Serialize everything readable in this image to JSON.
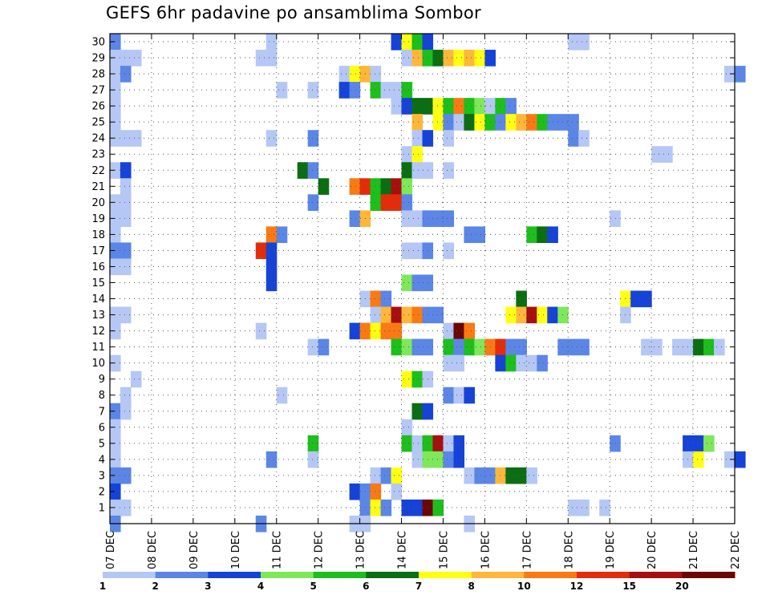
{
  "title": "GEFS 6hr padavine po ansamblima Sombor",
  "chart_data": {
    "type": "heatmap",
    "title": "GEFS 6hr padavine po ansamblima Sombor",
    "xlabel": "",
    "ylabel": "",
    "grid": true,
    "x_tick_labels": [
      "07 DEC",
      "08 DEC",
      "09 DEC",
      "10 DEC",
      "11 DEC",
      "12 DEC",
      "13 DEC",
      "14 DEC",
      "15 DEC",
      "16 DEC",
      "17 DEC",
      "18 DEC",
      "19 DEC",
      "20 DEC",
      "21 DEC",
      "22 DEC"
    ],
    "y_tick_labels": [
      "1",
      "2",
      "3",
      "4",
      "5",
      "6",
      "7",
      "8",
      "9",
      "10",
      "11",
      "12",
      "13",
      "14",
      "15",
      "16",
      "17",
      "18",
      "19",
      "20",
      "21",
      "22",
      "23",
      "24",
      "25",
      "26",
      "27",
      "28",
      "29",
      "30"
    ],
    "x_range": [
      "07 DEC",
      "22 DEC"
    ],
    "y_range": [
      0,
      30
    ],
    "x_step": "6hr",
    "colorbar": {
      "labels": [
        "1",
        "2",
        "3",
        "4",
        "5",
        "6",
        "7",
        "8",
        "10",
        "12",
        "15",
        "20"
      ],
      "colors": [
        "#b5c7f5",
        "#5b86e6",
        "#1543d8",
        "#7ee85a",
        "#1cbf1c",
        "#0b6e12",
        "#ffff14",
        "#ffb73a",
        "#f97a14",
        "#e32d0a",
        "#a70f0f",
        "#6b0606"
      ]
    },
    "cell_format": "[member, day_index_from_07DEC, six_hour_step_0_to_3, precip_class_0_to_11]",
    "cells": [
      [
        30,
        0,
        0,
        1
      ],
      [
        29,
        0,
        0,
        0
      ],
      [
        29,
        0,
        1,
        0
      ],
      [
        29,
        0,
        2,
        0
      ],
      [
        28,
        0,
        0,
        0
      ],
      [
        28,
        0,
        1,
        1
      ],
      [
        27,
        0,
        0,
        0
      ],
      [
        26,
        0,
        0,
        0
      ],
      [
        25,
        0,
        0,
        0
      ],
      [
        24,
        0,
        0,
        0
      ],
      [
        24,
        0,
        1,
        0
      ],
      [
        24,
        0,
        2,
        0
      ],
      [
        22,
        0,
        0,
        0
      ],
      [
        22,
        0,
        1,
        2
      ],
      [
        21,
        0,
        1,
        0
      ],
      [
        20,
        0,
        0,
        0
      ],
      [
        20,
        0,
        1,
        0
      ],
      [
        19,
        0,
        0,
        0
      ],
      [
        19,
        0,
        1,
        0
      ],
      [
        18,
        0,
        0,
        0
      ],
      [
        17,
        0,
        0,
        1
      ],
      [
        17,
        0,
        1,
        1
      ],
      [
        16,
        0,
        0,
        0
      ],
      [
        16,
        0,
        1,
        0
      ],
      [
        13,
        0,
        0,
        0
      ],
      [
        13,
        0,
        1,
        0
      ],
      [
        12,
        0,
        0,
        0
      ],
      [
        10,
        0,
        0,
        0
      ],
      [
        9,
        0,
        2,
        0
      ],
      [
        8,
        0,
        1,
        0
      ],
      [
        7,
        0,
        0,
        1
      ],
      [
        7,
        0,
        1,
        0
      ],
      [
        6,
        0,
        0,
        0
      ],
      [
        5,
        0,
        0,
        0
      ],
      [
        4,
        0,
        0,
        0
      ],
      [
        3,
        0,
        0,
        1
      ],
      [
        3,
        0,
        1,
        1
      ],
      [
        2,
        0,
        0,
        2
      ],
      [
        1,
        0,
        0,
        0
      ],
      [
        1,
        0,
        1,
        0
      ],
      [
        0,
        0,
        0,
        1
      ],
      [
        30,
        3,
        3,
        0
      ],
      [
        29,
        3,
        2,
        0
      ],
      [
        29,
        3,
        3,
        0
      ],
      [
        27,
        4,
        0,
        0
      ],
      [
        24,
        3,
        3,
        0
      ],
      [
        18,
        3,
        3,
        8
      ],
      [
        18,
        4,
        0,
        1
      ],
      [
        17,
        3,
        2,
        9
      ],
      [
        17,
        3,
        3,
        2
      ],
      [
        16,
        3,
        3,
        2
      ],
      [
        15,
        3,
        3,
        2
      ],
      [
        12,
        3,
        2,
        0
      ],
      [
        8,
        4,
        0,
        0
      ],
      [
        4,
        3,
        3,
        1
      ],
      [
        0,
        3,
        2,
        1
      ],
      [
        27,
        4,
        3,
        0
      ],
      [
        24,
        4,
        3,
        1
      ],
      [
        22,
        4,
        2,
        5
      ],
      [
        22,
        4,
        3,
        1
      ],
      [
        21,
        5,
        0,
        5
      ],
      [
        20,
        4,
        3,
        1
      ],
      [
        11,
        4,
        3,
        0
      ],
      [
        11,
        5,
        0,
        1
      ],
      [
        5,
        4,
        3,
        4
      ],
      [
        4,
        4,
        3,
        0
      ],
      [
        30,
        6,
        3,
        2
      ],
      [
        30,
        7,
        0,
        6
      ],
      [
        30,
        7,
        1,
        4
      ],
      [
        30,
        7,
        2,
        2
      ],
      [
        29,
        7,
        0,
        0
      ],
      [
        29,
        7,
        1,
        7
      ],
      [
        29,
        7,
        2,
        4
      ],
      [
        29,
        7,
        3,
        5
      ],
      [
        29,
        8,
        0,
        7
      ],
      [
        29,
        8,
        1,
        6
      ],
      [
        29,
        8,
        2,
        7
      ],
      [
        29,
        8,
        3,
        6
      ],
      [
        29,
        9,
        0,
        2
      ],
      [
        28,
        5,
        2,
        0
      ],
      [
        28,
        5,
        3,
        6
      ],
      [
        28,
        6,
        0,
        7
      ],
      [
        28,
        6,
        1,
        0
      ],
      [
        27,
        5,
        2,
        2
      ],
      [
        27,
        5,
        3,
        1
      ],
      [
        27,
        6,
        1,
        4
      ],
      [
        27,
        6,
        2,
        0
      ],
      [
        27,
        6,
        3,
        0
      ],
      [
        27,
        7,
        0,
        4
      ],
      [
        26,
        6,
        3,
        0
      ],
      [
        26,
        7,
        0,
        2
      ],
      [
        26,
        7,
        1,
        5
      ],
      [
        26,
        7,
        2,
        5
      ],
      [
        26,
        7,
        3,
        6
      ],
      [
        26,
        8,
        0,
        4
      ],
      [
        26,
        8,
        1,
        8
      ],
      [
        26,
        8,
        2,
        4
      ],
      [
        26,
        8,
        3,
        3
      ],
      [
        26,
        9,
        0,
        0
      ],
      [
        26,
        9,
        1,
        4
      ],
      [
        26,
        9,
        2,
        1
      ],
      [
        25,
        7,
        1,
        7
      ],
      [
        25,
        7,
        3,
        6
      ],
      [
        25,
        8,
        0,
        1
      ],
      [
        25,
        8,
        1,
        0
      ],
      [
        25,
        8,
        2,
        5
      ],
      [
        25,
        8,
        3,
        6
      ],
      [
        25,
        9,
        0,
        4
      ],
      [
        25,
        9,
        1,
        1
      ],
      [
        25,
        9,
        2,
        6
      ],
      [
        25,
        9,
        3,
        7
      ],
      [
        25,
        10,
        0,
        8
      ],
      [
        25,
        10,
        1,
        4
      ],
      [
        25,
        10,
        2,
        1
      ],
      [
        25,
        10,
        3,
        1
      ],
      [
        25,
        11,
        0,
        1
      ],
      [
        24,
        7,
        1,
        0
      ],
      [
        24,
        7,
        2,
        2
      ],
      [
        24,
        8,
        0,
        0
      ],
      [
        24,
        11,
        0,
        1
      ],
      [
        24,
        11,
        1,
        0
      ],
      [
        23,
        7,
        0,
        0
      ],
      [
        23,
        7,
        1,
        6
      ],
      [
        22,
        7,
        0,
        5
      ],
      [
        22,
        7,
        1,
        0
      ],
      [
        22,
        7,
        2,
        0
      ],
      [
        22,
        8,
        0,
        0
      ],
      [
        21,
        5,
        3,
        8
      ],
      [
        21,
        6,
        0,
        9
      ],
      [
        21,
        6,
        1,
        4
      ],
      [
        21,
        6,
        2,
        5
      ],
      [
        21,
        6,
        3,
        10
      ],
      [
        21,
        7,
        0,
        3
      ],
      [
        20,
        6,
        1,
        4
      ],
      [
        20,
        6,
        2,
        9
      ],
      [
        20,
        6,
        3,
        9
      ],
      [
        20,
        7,
        0,
        1
      ],
      [
        19,
        5,
        3,
        1
      ],
      [
        19,
        6,
        0,
        7
      ],
      [
        19,
        7,
        0,
        0
      ],
      [
        19,
        7,
        1,
        0
      ],
      [
        19,
        7,
        2,
        1
      ],
      [
        19,
        7,
        3,
        1
      ],
      [
        19,
        8,
        0,
        1
      ],
      [
        19,
        12,
        0,
        0
      ],
      [
        18,
        8,
        2,
        1
      ],
      [
        18,
        8,
        3,
        1
      ],
      [
        18,
        10,
        0,
        4
      ],
      [
        18,
        10,
        1,
        5
      ],
      [
        18,
        10,
        2,
        2
      ],
      [
        17,
        7,
        0,
        0
      ],
      [
        17,
        7,
        1,
        0
      ],
      [
        17,
        7,
        2,
        1
      ],
      [
        17,
        8,
        0,
        0
      ],
      [
        15,
        7,
        0,
        3
      ],
      [
        15,
        7,
        1,
        1
      ],
      [
        15,
        7,
        2,
        1
      ],
      [
        14,
        6,
        0,
        0
      ],
      [
        14,
        6,
        1,
        8
      ],
      [
        14,
        6,
        2,
        1
      ],
      [
        14,
        9,
        3,
        5
      ],
      [
        14,
        12,
        1,
        6
      ],
      [
        14,
        12,
        2,
        2
      ],
      [
        14,
        12,
        3,
        2
      ],
      [
        13,
        6,
        1,
        0
      ],
      [
        13,
        6,
        2,
        7
      ],
      [
        13,
        6,
        3,
        10
      ],
      [
        13,
        7,
        0,
        7
      ],
      [
        13,
        7,
        1,
        8
      ],
      [
        13,
        7,
        2,
        1
      ],
      [
        13,
        7,
        3,
        1
      ],
      [
        13,
        9,
        2,
        6
      ],
      [
        13,
        9,
        3,
        7
      ],
      [
        13,
        10,
        0,
        10
      ],
      [
        13,
        10,
        1,
        6
      ],
      [
        13,
        10,
        2,
        2
      ],
      [
        13,
        10,
        3,
        3
      ],
      [
        13,
        12,
        1,
        0
      ],
      [
        12,
        5,
        3,
        2
      ],
      [
        12,
        6,
        0,
        8
      ],
      [
        12,
        6,
        1,
        6
      ],
      [
        12,
        6,
        2,
        8
      ],
      [
        12,
        6,
        3,
        8
      ],
      [
        12,
        8,
        0,
        0
      ],
      [
        12,
        8,
        1,
        11
      ],
      [
        12,
        8,
        2,
        8
      ],
      [
        11,
        6,
        3,
        4
      ],
      [
        11,
        7,
        0,
        3
      ],
      [
        11,
        7,
        1,
        1
      ],
      [
        11,
        7,
        2,
        1
      ],
      [
        11,
        8,
        0,
        4
      ],
      [
        11,
        8,
        1,
        1
      ],
      [
        11,
        8,
        2,
        4
      ],
      [
        11,
        8,
        3,
        3
      ],
      [
        11,
        9,
        0,
        8
      ],
      [
        11,
        9,
        1,
        9
      ],
      [
        11,
        9,
        2,
        1
      ],
      [
        11,
        9,
        3,
        1
      ],
      [
        11,
        10,
        3,
        1
      ],
      [
        11,
        11,
        0,
        1
      ],
      [
        11,
        11,
        1,
        1
      ],
      [
        11,
        13,
        0,
        0
      ],
      [
        11,
        13,
        2,
        0
      ],
      [
        11,
        13,
        3,
        0
      ],
      [
        11,
        14,
        0,
        5
      ],
      [
        11,
        14,
        1,
        4
      ],
      [
        11,
        14,
        2,
        0
      ],
      [
        10,
        8,
        0,
        0
      ],
      [
        10,
        8,
        1,
        0
      ],
      [
        10,
        9,
        1,
        2
      ],
      [
        10,
        9,
        2,
        4
      ],
      [
        10,
        9,
        3,
        0
      ],
      [
        10,
        10,
        0,
        0
      ],
      [
        10,
        10,
        1,
        1
      ],
      [
        9,
        7,
        0,
        6
      ],
      [
        9,
        7,
        1,
        4
      ],
      [
        9,
        7,
        2,
        0
      ],
      [
        8,
        8,
        0,
        1
      ],
      [
        8,
        8,
        1,
        0
      ],
      [
        8,
        8,
        2,
        2
      ],
      [
        7,
        7,
        1,
        5
      ],
      [
        7,
        7,
        2,
        2
      ],
      [
        6,
        7,
        0,
        0
      ],
      [
        5,
        7,
        0,
        4
      ],
      [
        5,
        7,
        1,
        0
      ],
      [
        5,
        7,
        2,
        4
      ],
      [
        5,
        7,
        3,
        10
      ],
      [
        5,
        8,
        0,
        0
      ],
      [
        5,
        8,
        1,
        2
      ],
      [
        5,
        12,
        0,
        1
      ],
      [
        5,
        13,
        3,
        2
      ],
      [
        5,
        14,
        0,
        2
      ],
      [
        5,
        14,
        1,
        3
      ],
      [
        4,
        7,
        1,
        0
      ],
      [
        4,
        7,
        2,
        3
      ],
      [
        4,
        7,
        3,
        3
      ],
      [
        4,
        8,
        0,
        1
      ],
      [
        4,
        8,
        1,
        2
      ],
      [
        4,
        13,
        3,
        0
      ],
      [
        4,
        14,
        0,
        6
      ],
      [
        4,
        14,
        3,
        0
      ],
      [
        4,
        15,
        0,
        2
      ],
      [
        3,
        6,
        1,
        0
      ],
      [
        3,
        6,
        2,
        1
      ],
      [
        3,
        6,
        3,
        6
      ],
      [
        3,
        8,
        2,
        0
      ],
      [
        3,
        8,
        3,
        1
      ],
      [
        3,
        9,
        0,
        1
      ],
      [
        3,
        9,
        1,
        7
      ],
      [
        3,
        9,
        2,
        5
      ],
      [
        3,
        9,
        3,
        5
      ],
      [
        3,
        10,
        0,
        0
      ],
      [
        2,
        5,
        3,
        2
      ],
      [
        2,
        6,
        0,
        1
      ],
      [
        2,
        6,
        1,
        8
      ],
      [
        2,
        6,
        3,
        0
      ],
      [
        1,
        6,
        0,
        1
      ],
      [
        1,
        6,
        1,
        6
      ],
      [
        1,
        6,
        2,
        1
      ],
      [
        1,
        7,
        0,
        2
      ],
      [
        1,
        7,
        1,
        2
      ],
      [
        1,
        7,
        2,
        11
      ],
      [
        1,
        7,
        3,
        4
      ],
      [
        1,
        11,
        0,
        0
      ],
      [
        1,
        11,
        1,
        0
      ],
      [
        1,
        11,
        3,
        0
      ],
      [
        30,
        11,
        0,
        0
      ],
      [
        30,
        11,
        1,
        0
      ],
      [
        28,
        15,
        0,
        1
      ],
      [
        28,
        14,
        3,
        0
      ],
      [
        23,
        13,
        0,
        0
      ],
      [
        23,
        13,
        1,
        0
      ],
      [
        11,
        12,
        3,
        0
      ],
      [
        0,
        8,
        2,
        0
      ],
      [
        0,
        6,
        0,
        0
      ],
      [
        0,
        5,
        3,
        0
      ]
    ]
  }
}
